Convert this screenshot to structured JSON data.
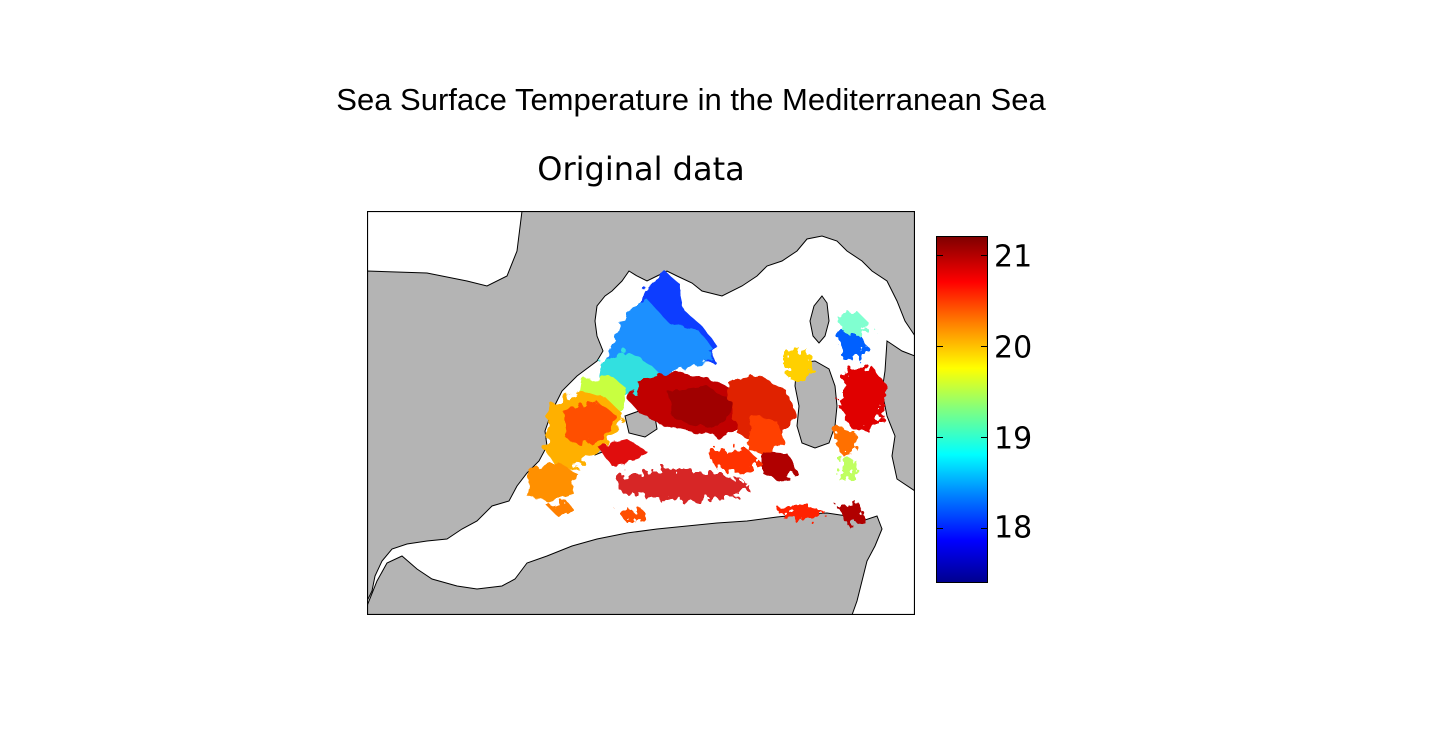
{
  "title": "Sea Surface Temperature in the Mediterranean Sea",
  "subtitle": "Original data",
  "colorbar": {
    "ticks": [
      "21",
      "20",
      "19",
      "18"
    ],
    "tick_values": [
      21,
      20,
      19,
      18
    ],
    "range": [
      17.35,
      21.2
    ],
    "colormap": "jet"
  },
  "colors": {
    "land": "#b4b4b4",
    "sea_missing": "#ffffff",
    "border": "#000000"
  }
}
